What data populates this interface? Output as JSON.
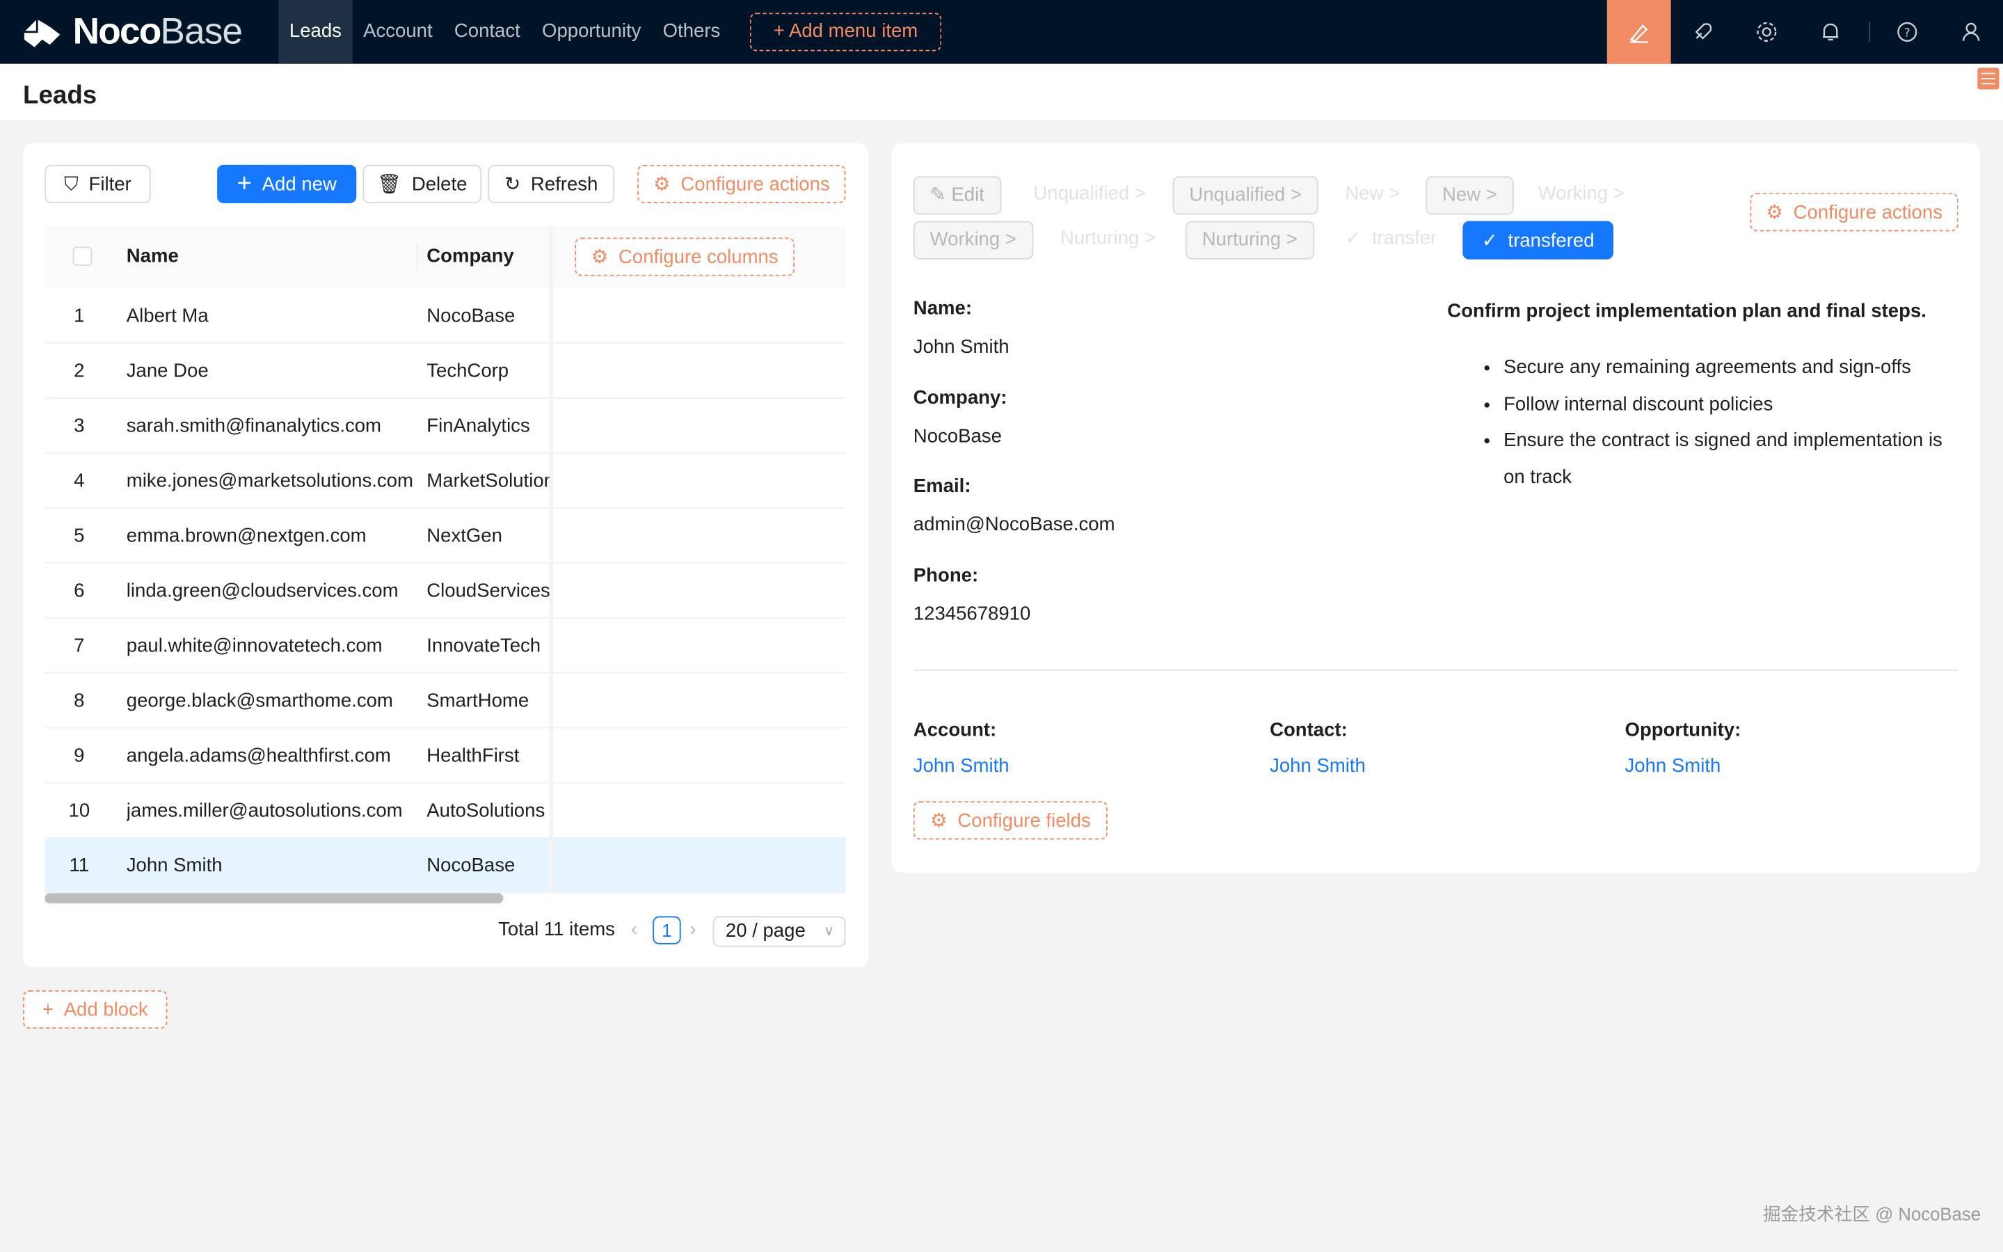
{
  "header": {
    "brand_bold": "Noco",
    "brand_light": "Base",
    "menu": [
      "Leads",
      "Account",
      "Contact",
      "Opportunity",
      "Others"
    ],
    "active_menu": "Leads",
    "add_menu_item": "Add menu item",
    "accent": "#f18b62",
    "bg": "#011427",
    "icons": [
      "ui-editor-icon",
      "plugin-rocket-icon",
      "settings-gear-icon",
      "bell-icon",
      "help-icon",
      "user-icon"
    ]
  },
  "page": {
    "title": "Leads"
  },
  "table_block": {
    "actions": {
      "filter": "Filter",
      "add_new": "Add new",
      "delete": "Delete",
      "refresh": "Refresh",
      "configure_actions": "Configure actions"
    },
    "columns": [
      "Name",
      "Company"
    ],
    "configure_columns": "Configure columns",
    "rows": [
      {
        "no": "1",
        "name": "Albert Ma",
        "company": "NocoBase"
      },
      {
        "no": "2",
        "name": "Jane Doe",
        "company": "TechCorp"
      },
      {
        "no": "3",
        "name": "sarah.smith@finanalytics.com",
        "company": "FinAnalytics"
      },
      {
        "no": "4",
        "name": "mike.jones@marketsolutions.com",
        "company": "MarketSolutions"
      },
      {
        "no": "5",
        "name": "emma.brown@nextgen.com",
        "company": "NextGen"
      },
      {
        "no": "6",
        "name": "linda.green@cloudservices.com",
        "company": "CloudServices"
      },
      {
        "no": "7",
        "name": "paul.white@innovatetech.com",
        "company": "InnovateTech"
      },
      {
        "no": "8",
        "name": "george.black@smarthome.com",
        "company": "SmartHome"
      },
      {
        "no": "9",
        "name": "angela.adams@healthfirst.com",
        "company": "HealthFirst"
      },
      {
        "no": "10",
        "name": "james.miller@autosolutions.com",
        "company": "AutoSolutions"
      },
      {
        "no": "11",
        "name": "John Smith",
        "company": "NocoBase"
      }
    ],
    "selected_row": "11",
    "pagination": {
      "total": "Total 11 items",
      "page": "1",
      "page_size": "20 / page"
    }
  },
  "detail_block": {
    "edit": "Edit",
    "statuses": [
      {
        "label": "Unqualified >",
        "style": "ghost"
      },
      {
        "label": "Unqualified >",
        "style": "boxed"
      },
      {
        "label": "New >",
        "style": "ghost"
      },
      {
        "label": "New >",
        "style": "boxed"
      },
      {
        "label": "Working >",
        "style": "ghost"
      },
      {
        "label": "Working >",
        "style": "boxed"
      },
      {
        "label": "Nurturing >",
        "style": "ghost"
      },
      {
        "label": "Nurturing >",
        "style": "boxed"
      },
      {
        "label": "transfer",
        "style": "ghost"
      },
      {
        "label": "transfered",
        "style": "primary"
      }
    ],
    "configure_actions": "Configure actions",
    "fields": [
      {
        "label": "Name",
        "value": "John Smith"
      },
      {
        "label": "Company",
        "value": "NocoBase"
      },
      {
        "label": "Email",
        "value": "admin@NocoBase.com"
      },
      {
        "label": "Phone",
        "value": "12345678910"
      }
    ],
    "note": {
      "title": "Confirm project implementation plan and final steps.",
      "bullets": [
        "Secure any remaining agreements and sign-offs",
        "Follow internal discount policies",
        "Ensure the contract is signed and implementation is on track"
      ]
    },
    "relations": [
      {
        "label": "Account:",
        "value": "John Smith"
      },
      {
        "label": "Contact:",
        "value": "John Smith"
      },
      {
        "label": "Opportunity:",
        "value": "John Smith"
      }
    ],
    "configure_fields": "Configure fields"
  },
  "add_block": "Add block",
  "watermark": "掘金技术社区 @ NocoBase"
}
